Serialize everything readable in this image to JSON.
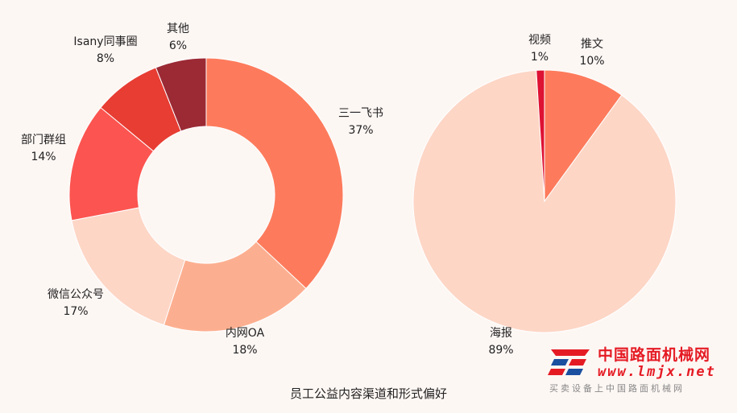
{
  "chart_data": [
    {
      "type": "pie",
      "variant": "donut",
      "title": "",
      "slices": [
        {
          "name": "三一飞书",
          "value": 37,
          "label": "37%",
          "color": "#fd7b5c"
        },
        {
          "name": "内网OA",
          "value": 18,
          "label": "18%",
          "color": "#fcaf90"
        },
        {
          "name": "微信公众号",
          "value": 17,
          "label": "17%",
          "color": "#fdd6c6"
        },
        {
          "name": "部门群组",
          "value": 14,
          "label": "14%",
          "color": "#fc5450"
        },
        {
          "name": "Isany同事圈",
          "value": 8,
          "label": "8%",
          "color": "#e73d33"
        },
        {
          "name": "其他",
          "value": 6,
          "label": "6%",
          "color": "#9b2a35"
        }
      ]
    },
    {
      "type": "pie",
      "title": "",
      "slices": [
        {
          "name": "推文",
          "value": 10,
          "label": "10%",
          "color": "#fd7b5c"
        },
        {
          "name": "海报",
          "value": 89,
          "label": "89%",
          "color": "#fdd6c6"
        },
        {
          "name": "视频",
          "value": 1,
          "label": "1%",
          "color": "#de1233"
        }
      ]
    }
  ],
  "caption": "员工公益内容渠道和形式偏好",
  "watermark": {
    "name": "中国路面机械网",
    "url": "www.lmjx.net",
    "subtitle": "买卖设备上中国路面机械网",
    "color": "#e51b24"
  }
}
